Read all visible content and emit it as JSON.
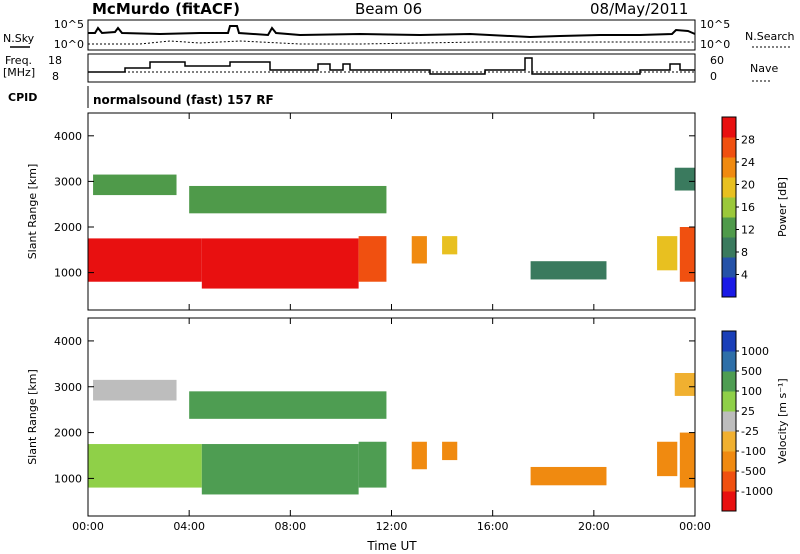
{
  "header": {
    "station": "McMurdo (fitACF)",
    "beam": "Beam 06",
    "date": "08/May/2011"
  },
  "labels": {
    "n_sky": "N.Sky",
    "n_search": "N.Search",
    "freq": "Freq.",
    "freq_unit": "[MHz]",
    "nave": "Nave",
    "cpid": "CPID",
    "cpid_value": "normalsound (fast) 157 RF",
    "noise_ticks_left": [
      "10^5",
      "10^0"
    ],
    "noise_ticks_right": [
      "10^5",
      "10^0"
    ],
    "freq_ticks": [
      "18",
      "8"
    ],
    "nave_ticks": [
      "60",
      "0"
    ]
  },
  "colors": {
    "power_scale": [
      "#1a1ae6",
      "#2552a8",
      "#3a7a5e",
      "#4f9a4a",
      "#9bc83a",
      "#e8c020",
      "#f08a10",
      "#f05010",
      "#e81010"
    ],
    "velocity_scale": [
      "#e81010",
      "#f05010",
      "#f08a10",
      "#f0b030",
      "#bdbdbd",
      "#8fd048",
      "#4e9d52",
      "#2e6fa8",
      "#1a3fb8"
    ]
  },
  "chart_data": [
    {
      "type": "heatmap",
      "name_ref": "power",
      "ylabel": "Slant Range [km]",
      "xlim": [
        "00:00",
        "24:00"
      ],
      "ylim": [
        180,
        4500
      ],
      "xticks": [
        "00:00",
        "04:00",
        "08:00",
        "12:00",
        "16:00",
        "20:00",
        "00:00"
      ],
      "yticks": [
        1000,
        2000,
        3000,
        4000
      ],
      "colorbar": {
        "label": "Power [dB]",
        "ticks": [
          4,
          8,
          12,
          16,
          20,
          24,
          28
        ]
      },
      "regions": [
        {
          "t": [
            0.0,
            4.5
          ],
          "r": [
            800,
            1750
          ],
          "level": 8
        },
        {
          "t": [
            4.5,
            10.7
          ],
          "r": [
            650,
            1750
          ],
          "level": 8
        },
        {
          "t": [
            10.7,
            11.8
          ],
          "r": [
            800,
            1800
          ],
          "level": 7
        },
        {
          "t": [
            12.8,
            13.4
          ],
          "r": [
            1200,
            1800
          ],
          "level": 6
        },
        {
          "t": [
            14.0,
            14.6
          ],
          "r": [
            1400,
            1800
          ],
          "level": 5
        },
        {
          "t": [
            0.2,
            3.5
          ],
          "r": [
            2700,
            3150
          ],
          "level": 3
        },
        {
          "t": [
            4.0,
            11.8
          ],
          "r": [
            2300,
            2900
          ],
          "level": 3
        },
        {
          "t": [
            17.5,
            20.5
          ],
          "r": [
            850,
            1250
          ],
          "level": 2
        },
        {
          "t": [
            22.5,
            23.3
          ],
          "r": [
            1050,
            1800
          ],
          "level": 5
        },
        {
          "t": [
            23.4,
            24.0
          ],
          "r": [
            800,
            2000
          ],
          "level": 7
        },
        {
          "t": [
            23.2,
            24.0
          ],
          "r": [
            2800,
            3300
          ],
          "level": 2
        }
      ]
    },
    {
      "type": "heatmap",
      "name_ref": "velocity",
      "xlabel": "Time UT",
      "ylabel": "Slant Range [km]",
      "xlim": [
        "00:00",
        "24:00"
      ],
      "ylim": [
        180,
        4500
      ],
      "xticks": [
        "00:00",
        "04:00",
        "08:00",
        "12:00",
        "16:00",
        "20:00",
        "00:00"
      ],
      "yticks": [
        1000,
        2000,
        3000,
        4000
      ],
      "colorbar": {
        "label": "Velocity [m s⁻¹]",
        "ticks": [
          "1000",
          "500",
          "100",
          "25",
          "-25",
          "-100",
          "-500",
          "-1000"
        ]
      },
      "regions": [
        {
          "t": [
            0.0,
            4.5
          ],
          "r": [
            800,
            1750
          ],
          "level": 5
        },
        {
          "t": [
            4.5,
            10.7
          ],
          "r": [
            650,
            1750
          ],
          "level": 6
        },
        {
          "t": [
            10.7,
            11.8
          ],
          "r": [
            800,
            1800
          ],
          "level": 6
        },
        {
          "t": [
            12.8,
            13.4
          ],
          "r": [
            1200,
            1800
          ],
          "level": 2
        },
        {
          "t": [
            14.0,
            14.6
          ],
          "r": [
            1400,
            1800
          ],
          "level": 2
        },
        {
          "t": [
            0.2,
            3.5
          ],
          "r": [
            2700,
            3150
          ],
          "level": 4
        },
        {
          "t": [
            4.0,
            11.8
          ],
          "r": [
            2300,
            2900
          ],
          "level": 6
        },
        {
          "t": [
            17.5,
            20.5
          ],
          "r": [
            850,
            1250
          ],
          "level": 2
        },
        {
          "t": [
            22.5,
            23.3
          ],
          "r": [
            1050,
            1800
          ],
          "level": 2
        },
        {
          "t": [
            23.4,
            24.0
          ],
          "r": [
            800,
            2000
          ],
          "level": 2
        },
        {
          "t": [
            23.2,
            24.0
          ],
          "r": [
            2800,
            3300
          ],
          "level": 3
        }
      ]
    }
  ]
}
